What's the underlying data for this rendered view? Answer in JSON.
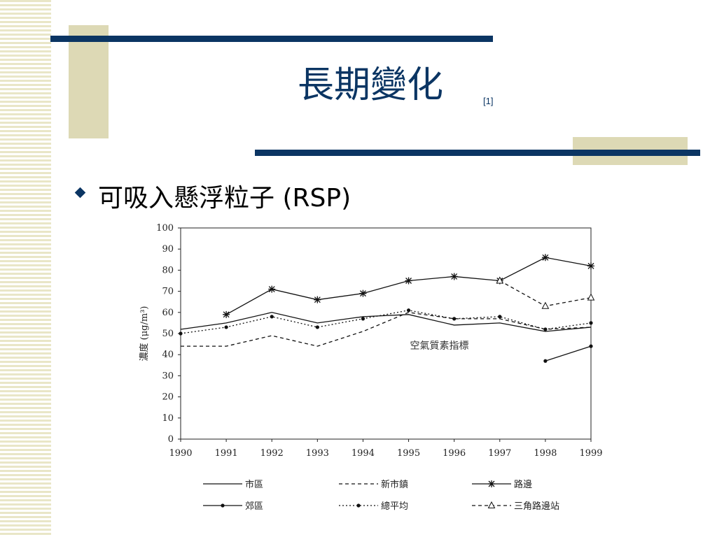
{
  "slide": {
    "title": "長期變化",
    "title_ref": "[1]",
    "bullet": "可吸入懸浮粒子 (RSP)"
  },
  "colors": {
    "navy": "#0b3563",
    "gold": "#ddd9b5",
    "stripe": "#e9e6c7"
  },
  "chart_data": {
    "type": "line",
    "x": [
      1990,
      1991,
      1992,
      1993,
      1994,
      1995,
      1996,
      1997,
      1998,
      1999
    ],
    "ylim": [
      0,
      100
    ],
    "yticks": [
      0,
      10,
      20,
      30,
      40,
      50,
      60,
      70,
      80,
      90,
      100
    ],
    "ylabel": "濃度 (μg/m³)",
    "annotation": "空氣質素指標",
    "grid": false,
    "legend_position": "bottom",
    "series": [
      {
        "name": "市區",
        "style": "solid",
        "values": [
          52,
          55,
          60,
          55,
          58,
          59,
          54,
          55,
          51,
          53
        ]
      },
      {
        "name": "新市鎮",
        "style": "dashed",
        "values": [
          44,
          44,
          49,
          44,
          51,
          60,
          57,
          57,
          52,
          53
        ]
      },
      {
        "name": "路邊",
        "style": "solid-star",
        "values": [
          null,
          59,
          71,
          66,
          69,
          75,
          77,
          75,
          86,
          82
        ]
      },
      {
        "name": "郊區",
        "style": "solid-dot",
        "values": [
          null,
          null,
          null,
          null,
          null,
          null,
          null,
          null,
          37,
          44
        ]
      },
      {
        "name": "總平均",
        "style": "dotted",
        "values": [
          50,
          53,
          58,
          53,
          57,
          61,
          57,
          58,
          52,
          55
        ]
      },
      {
        "name": "三角路邊站",
        "style": "dashed-triangle",
        "values": [
          null,
          null,
          null,
          null,
          null,
          null,
          null,
          75,
          63,
          67
        ]
      }
    ]
  }
}
